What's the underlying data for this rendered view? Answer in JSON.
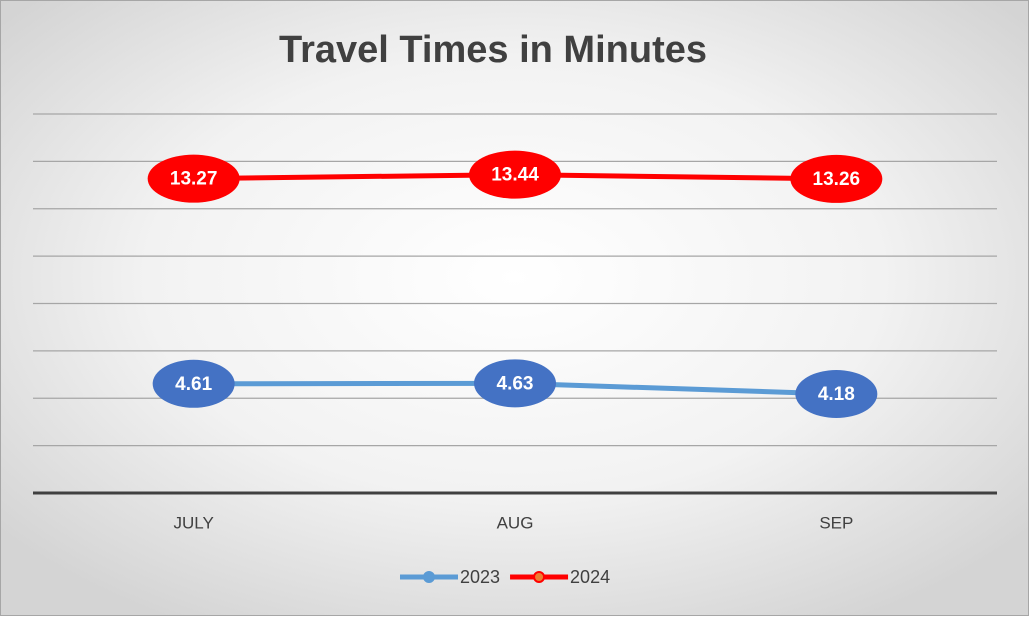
{
  "chart_data": {
    "type": "line",
    "title": "Travel Times in Minutes",
    "categories": [
      "JULY",
      "AUG",
      "SEP"
    ],
    "series": [
      {
        "name": "2023",
        "color": "#5b9bd5",
        "label_color": "#4472c4",
        "values": [
          4.61,
          4.63,
          4.18
        ]
      },
      {
        "name": "2024",
        "color": "#ff0000",
        "label_color": "#ff0000",
        "values": [
          13.27,
          13.44,
          13.26
        ]
      }
    ],
    "ylim": [
      0,
      16
    ],
    "yticks": [
      0,
      2,
      4,
      6,
      8,
      10,
      12,
      14,
      16
    ],
    "grid": true,
    "legend": "bottom"
  }
}
